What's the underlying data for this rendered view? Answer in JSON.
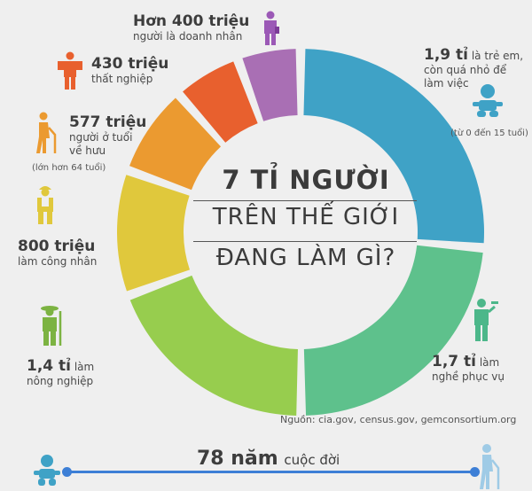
{
  "chart_data": {
    "type": "pie",
    "title": [
      "7 TỈ NGƯỜI",
      "TRÊN THẾ GIỚI",
      "ĐANG LÀM GÌ?"
    ],
    "unit": "người",
    "series": [
      {
        "name": "1,9 tỉ là trẻ em",
        "value": 1.9,
        "color": "#3fa2c6"
      },
      {
        "name": "1,7 tỉ làm nghề phục vụ",
        "value": 1.7,
        "color": "#5ec18c"
      },
      {
        "name": "1,4 tỉ làm nông nghiệp",
        "value": 1.4,
        "color": "#97cd4e"
      },
      {
        "name": "800 triệu làm công nhân",
        "value": 0.8,
        "color": "#e0c83c"
      },
      {
        "name": "577 triệu người ở tuổi về hưu",
        "value": 0.577,
        "color": "#eb9a30"
      },
      {
        "name": "430 triệu thất nghiệp",
        "value": 0.43,
        "color": "#e8602e"
      },
      {
        "name": "Hơn 400 triệu người là doanh nhân",
        "value": 0.4,
        "color": "#a96fb4"
      }
    ]
  },
  "labels": {
    "entrepreneurs": {
      "big": "Hơn 400 triệu",
      "text": "người là doanh nhân"
    },
    "unemployed": {
      "big": "430 triệu",
      "text": "thất nghiệp"
    },
    "retired": {
      "big": "577 triệu",
      "line1": "người ở tuổi",
      "line2": "về hưu",
      "note": "(lớn hơn 64 tuổi)"
    },
    "workers": {
      "big": "800 triệu",
      "text": "làm công nhân"
    },
    "farmers": {
      "big": "1,4 tỉ",
      "small": "làm",
      "text": "nông nghiệp"
    },
    "children": {
      "big": "1,9 tỉ",
      "line1": "là trẻ em,",
      "line2": "còn quá nhỏ để",
      "line3": "làm việc",
      "note": "(từ 0 đến 15 tuổi)"
    },
    "service": {
      "big": "1,7 tỉ",
      "small": "làm",
      "text": "nghề phục vụ"
    }
  },
  "title": {
    "line1": "7 TỈ NGƯỜI",
    "line2": "TRÊN THẾ GIỚI",
    "line3": "ĐANG LÀM GÌ?"
  },
  "source": "Nguồn:  cia.gov, census.gov, gemconsortium.org",
  "lifespan": {
    "big": "78 năm",
    "text": "cuộc đời"
  },
  "icons": {
    "entrepreneur": "businessperson-icon",
    "unemployed": "unemployed-person-icon",
    "retired": "elderly-cane-icon",
    "worker": "worker-icon",
    "farmer": "farmer-icon",
    "child": "baby-icon",
    "service": "waiter-icon"
  }
}
